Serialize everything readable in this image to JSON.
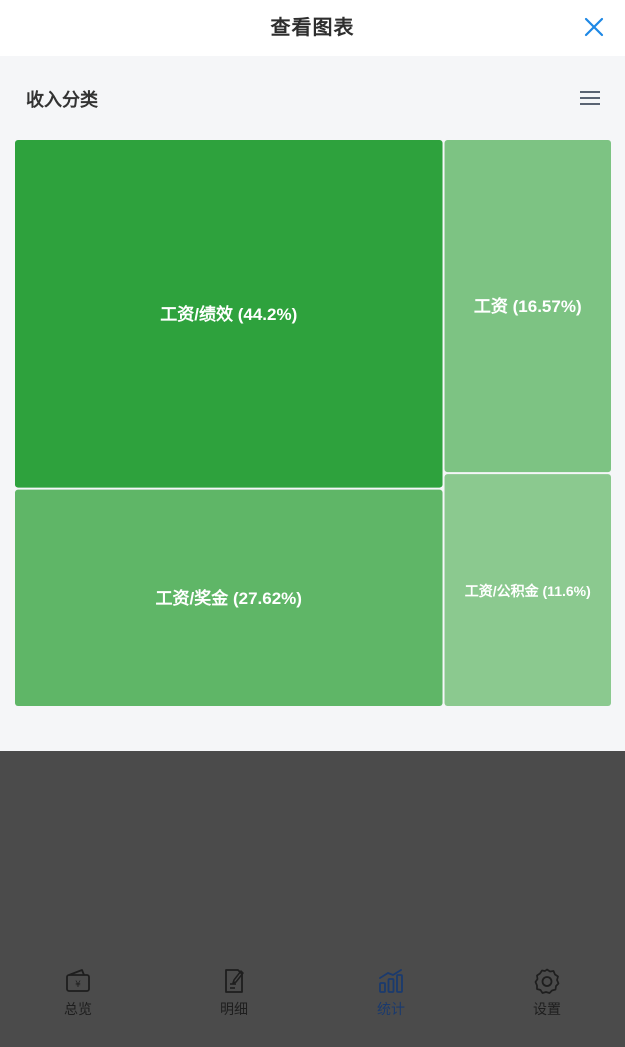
{
  "modal": {
    "title": "查看图表",
    "close_icon": "close-icon",
    "menu_icon": "hamburger-menu-icon"
  },
  "chart_data": {
    "type": "treemap",
    "title": "收入分类",
    "items": [
      {
        "label": "工资/绩效 (44.2%)",
        "name": "工资/绩效",
        "value": 44.2,
        "color": "#2ea23d"
      },
      {
        "label": "工资/奖金 (27.62%)",
        "name": "工资/奖金",
        "value": 27.62,
        "color": "#5fb667"
      },
      {
        "label": "工资 (16.57%)",
        "name": "工资",
        "value": 16.57,
        "color": "#7dc383"
      },
      {
        "label": "工资/公积金 (11.6%)",
        "name": "工资/公积金",
        "value": 11.6,
        "color": "#8bc98f"
      }
    ]
  },
  "nav": {
    "items": [
      {
        "label": "总览",
        "icon": "wallet-icon",
        "active": false
      },
      {
        "label": "明细",
        "icon": "edit-document-icon",
        "active": false
      },
      {
        "label": "统计",
        "icon": "bar-chart-icon",
        "active": true
      },
      {
        "label": "设置",
        "icon": "gear-icon",
        "active": false
      }
    ],
    "active_color": "#1a3a6e"
  }
}
